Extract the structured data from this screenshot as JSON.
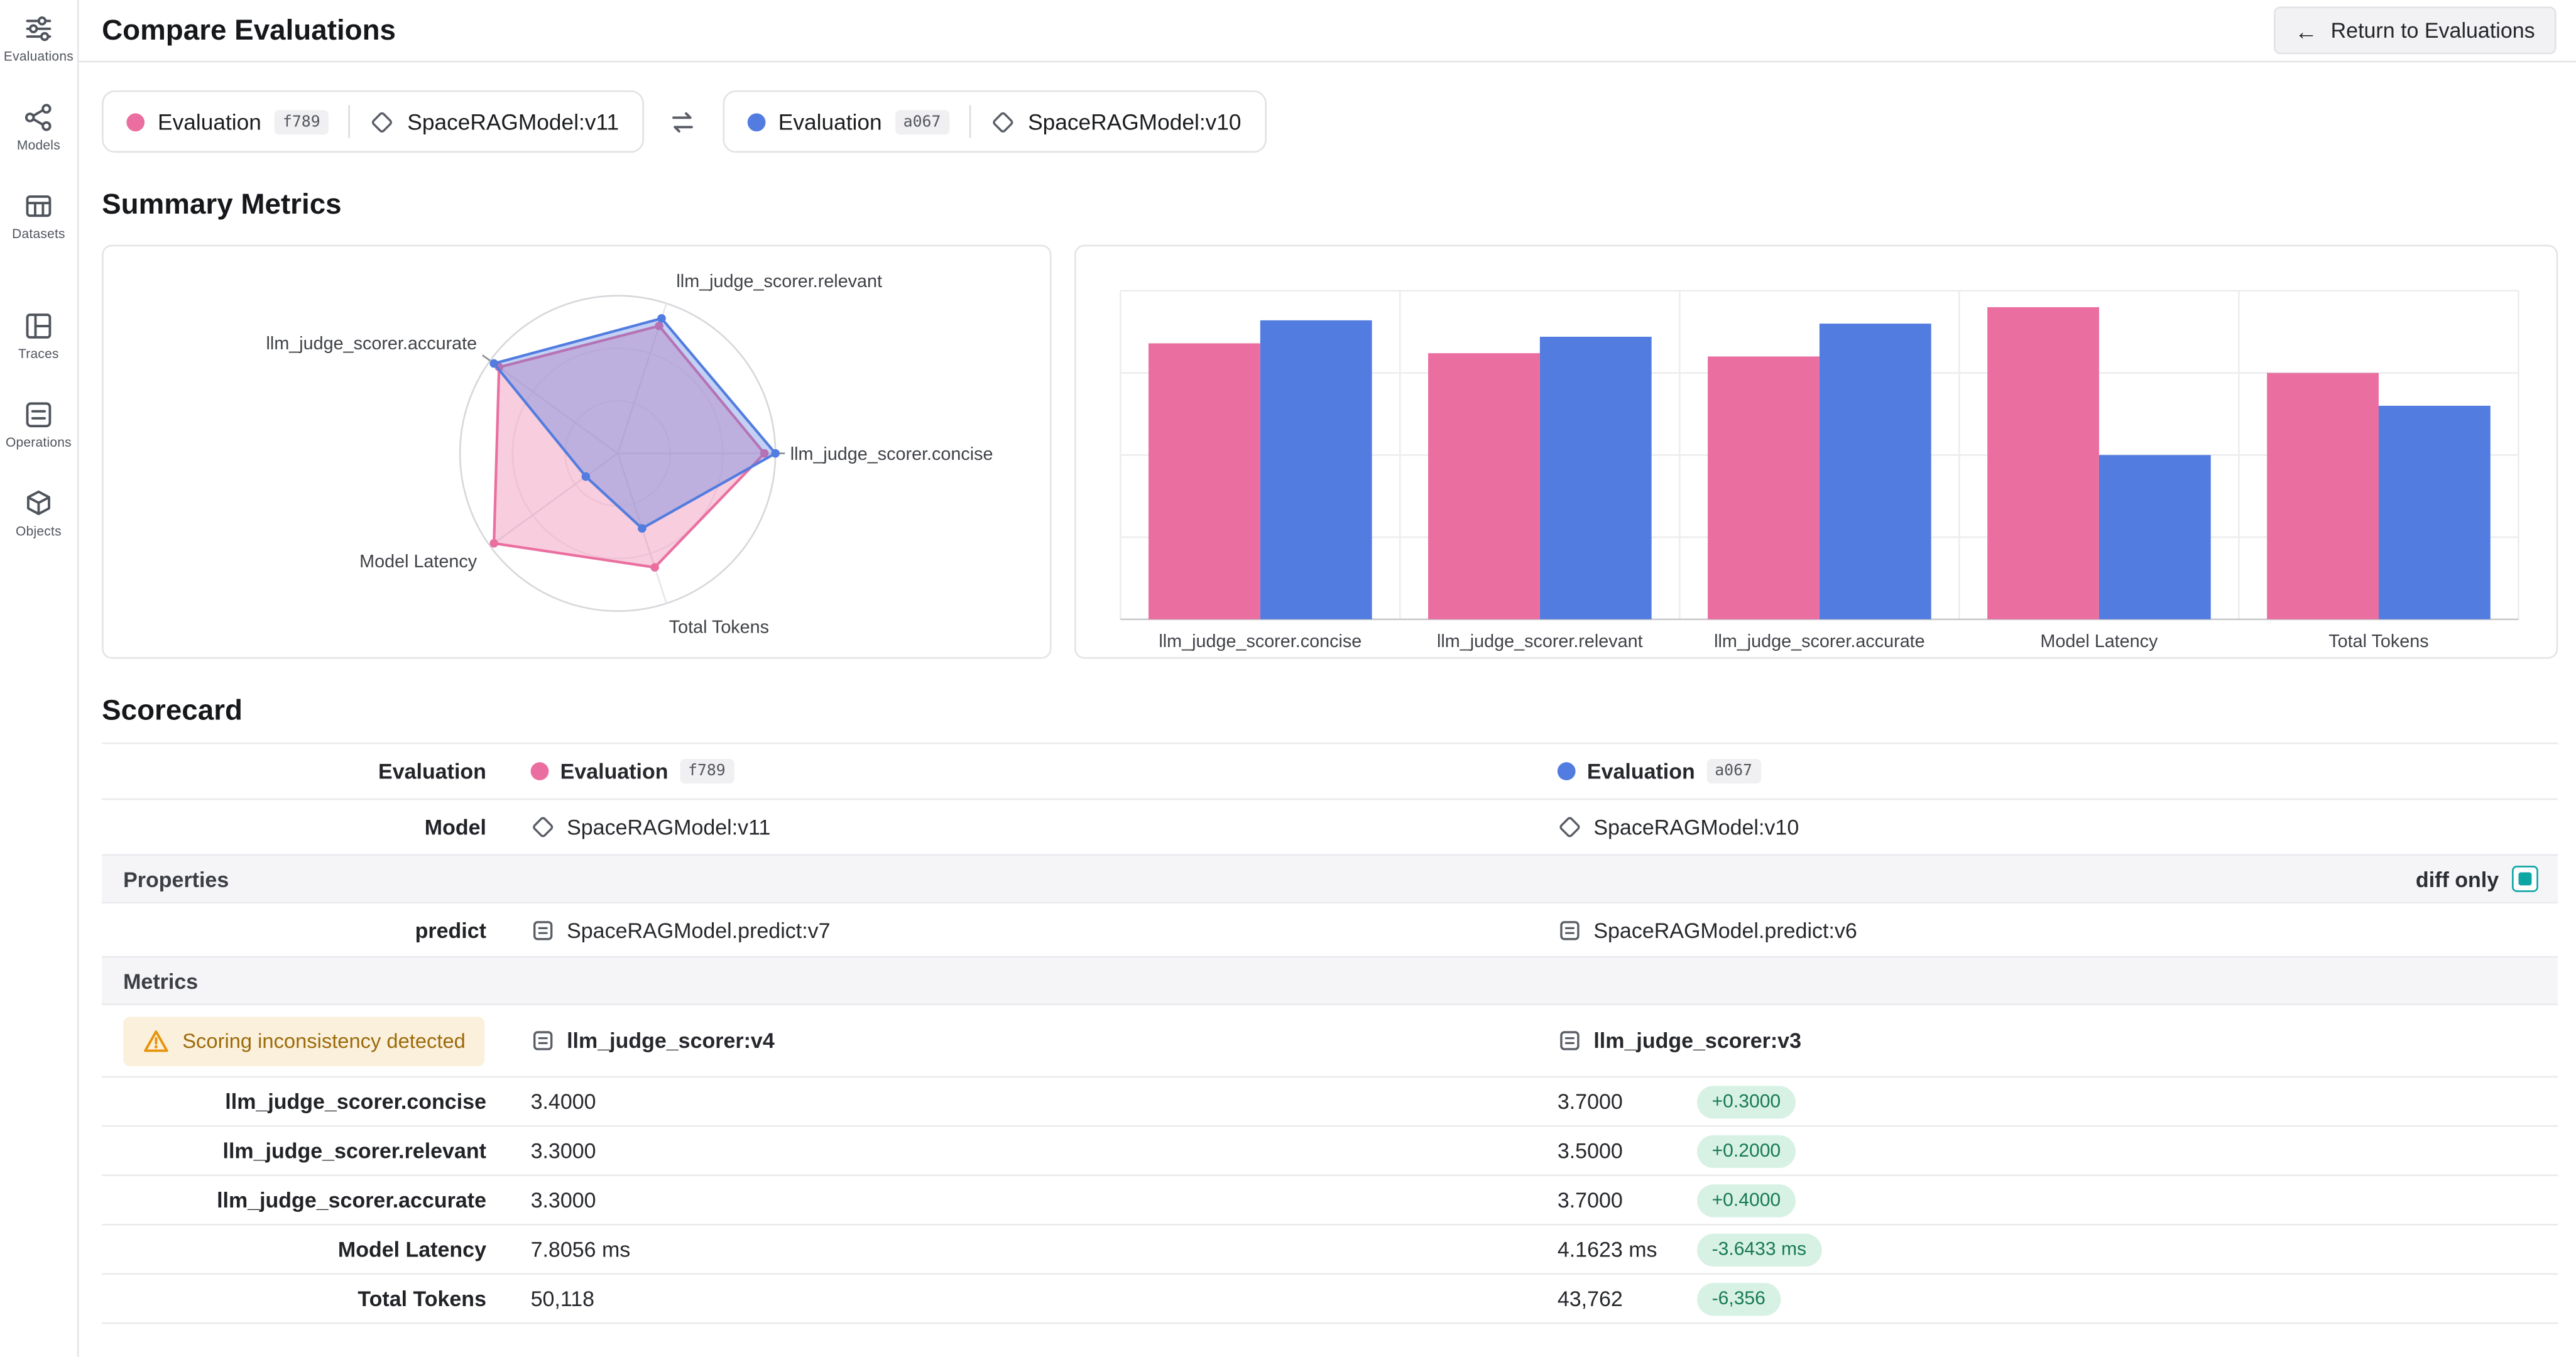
{
  "header": {
    "title": "Compare Evaluations",
    "return_button": "Return to Evaluations"
  },
  "sidebar": {
    "items": [
      {
        "label": "Evaluations",
        "icon": "evaluations-icon"
      },
      {
        "label": "Models",
        "icon": "models-icon"
      },
      {
        "label": "Datasets",
        "icon": "datasets-icon"
      },
      {
        "label": "Traces",
        "icon": "traces-icon"
      },
      {
        "label": "Operations",
        "icon": "operations-icon"
      },
      {
        "label": "Objects",
        "icon": "objects-icon"
      }
    ]
  },
  "evaluations": [
    {
      "name": "Evaluation",
      "id": "f789",
      "model": "SpaceRAGModel:v11",
      "color": "#EA6FA0"
    },
    {
      "name": "Evaluation",
      "id": "a067",
      "model": "SpaceRAGModel:v10",
      "color": "#527CDF"
    }
  ],
  "sections": {
    "summary": "Summary Metrics",
    "scorecard": "Scorecard"
  },
  "chart_data": [
    {
      "type": "radar",
      "axes": [
        "llm_judge_scorer.relevant",
        "llm_judge_scorer.concise",
        "Total Tokens",
        "Model Latency",
        "llm_judge_scorer.accurate"
      ],
      "range": [
        0,
        1
      ],
      "note": "values normalized per axis, no radial tick labels shown",
      "series": [
        {
          "name": "Evaluation f789",
          "color": "#EA6FA0",
          "values": [
            0.85,
            0.93,
            0.76,
            0.97,
            0.93
          ]
        },
        {
          "name": "Evaluation a067",
          "color": "#527CDF",
          "values": [
            0.9,
            1.0,
            0.5,
            0.25,
            0.97
          ]
        }
      ]
    },
    {
      "type": "bar",
      "categories": [
        "llm_judge_scorer.concise",
        "llm_judge_scorer.relevant",
        "llm_judge_scorer.accurate",
        "Model Latency",
        "Total Tokens"
      ],
      "ylim": [
        0,
        1
      ],
      "note": "grouped bars, values normalized per metric, no y tick labels shown",
      "series": [
        {
          "name": "Evaluation f789",
          "color": "#EA6FA0",
          "values": [
            0.84,
            0.81,
            0.8,
            0.95,
            0.75
          ]
        },
        {
          "name": "Evaluation a067",
          "color": "#527CDF",
          "values": [
            0.91,
            0.86,
            0.9,
            0.5,
            0.65
          ]
        }
      ]
    }
  ],
  "scorecard": {
    "labels": {
      "evaluation": "Evaluation",
      "model": "Model",
      "properties": "Properties",
      "predict": "predict",
      "metrics": "Metrics",
      "diff_only": "diff only"
    },
    "warning": "Scoring inconsistency detected",
    "predict_values": [
      "SpaceRAGModel.predict:v7",
      "SpaceRAGModel.predict:v6"
    ],
    "scorer_refs": [
      "llm_judge_scorer:v4",
      "llm_judge_scorer:v3"
    ],
    "metric_rows": [
      {
        "label": "llm_judge_scorer.concise",
        "baseline": "3.4000",
        "challenger": "3.7000",
        "delta": "+0.3000"
      },
      {
        "label": "llm_judge_scorer.relevant",
        "baseline": "3.3000",
        "challenger": "3.5000",
        "delta": "+0.2000"
      },
      {
        "label": "llm_judge_scorer.accurate",
        "baseline": "3.3000",
        "challenger": "3.7000",
        "delta": "+0.4000"
      },
      {
        "label": "Model Latency",
        "baseline": "7.8056 ms",
        "challenger": "4.1623 ms",
        "delta": "-3.6433 ms"
      },
      {
        "label": "Total Tokens",
        "baseline": "50,118",
        "challenger": "43,762",
        "delta": "-6,356"
      }
    ],
    "colors": {
      "delta_positive_bg": "#D8F1E5",
      "delta_positive_text": "#177A57",
      "warning_bg": "#FBF0DC",
      "warning_text": "#9C6A0A",
      "diff_toggle": "#0EA5A5"
    }
  }
}
